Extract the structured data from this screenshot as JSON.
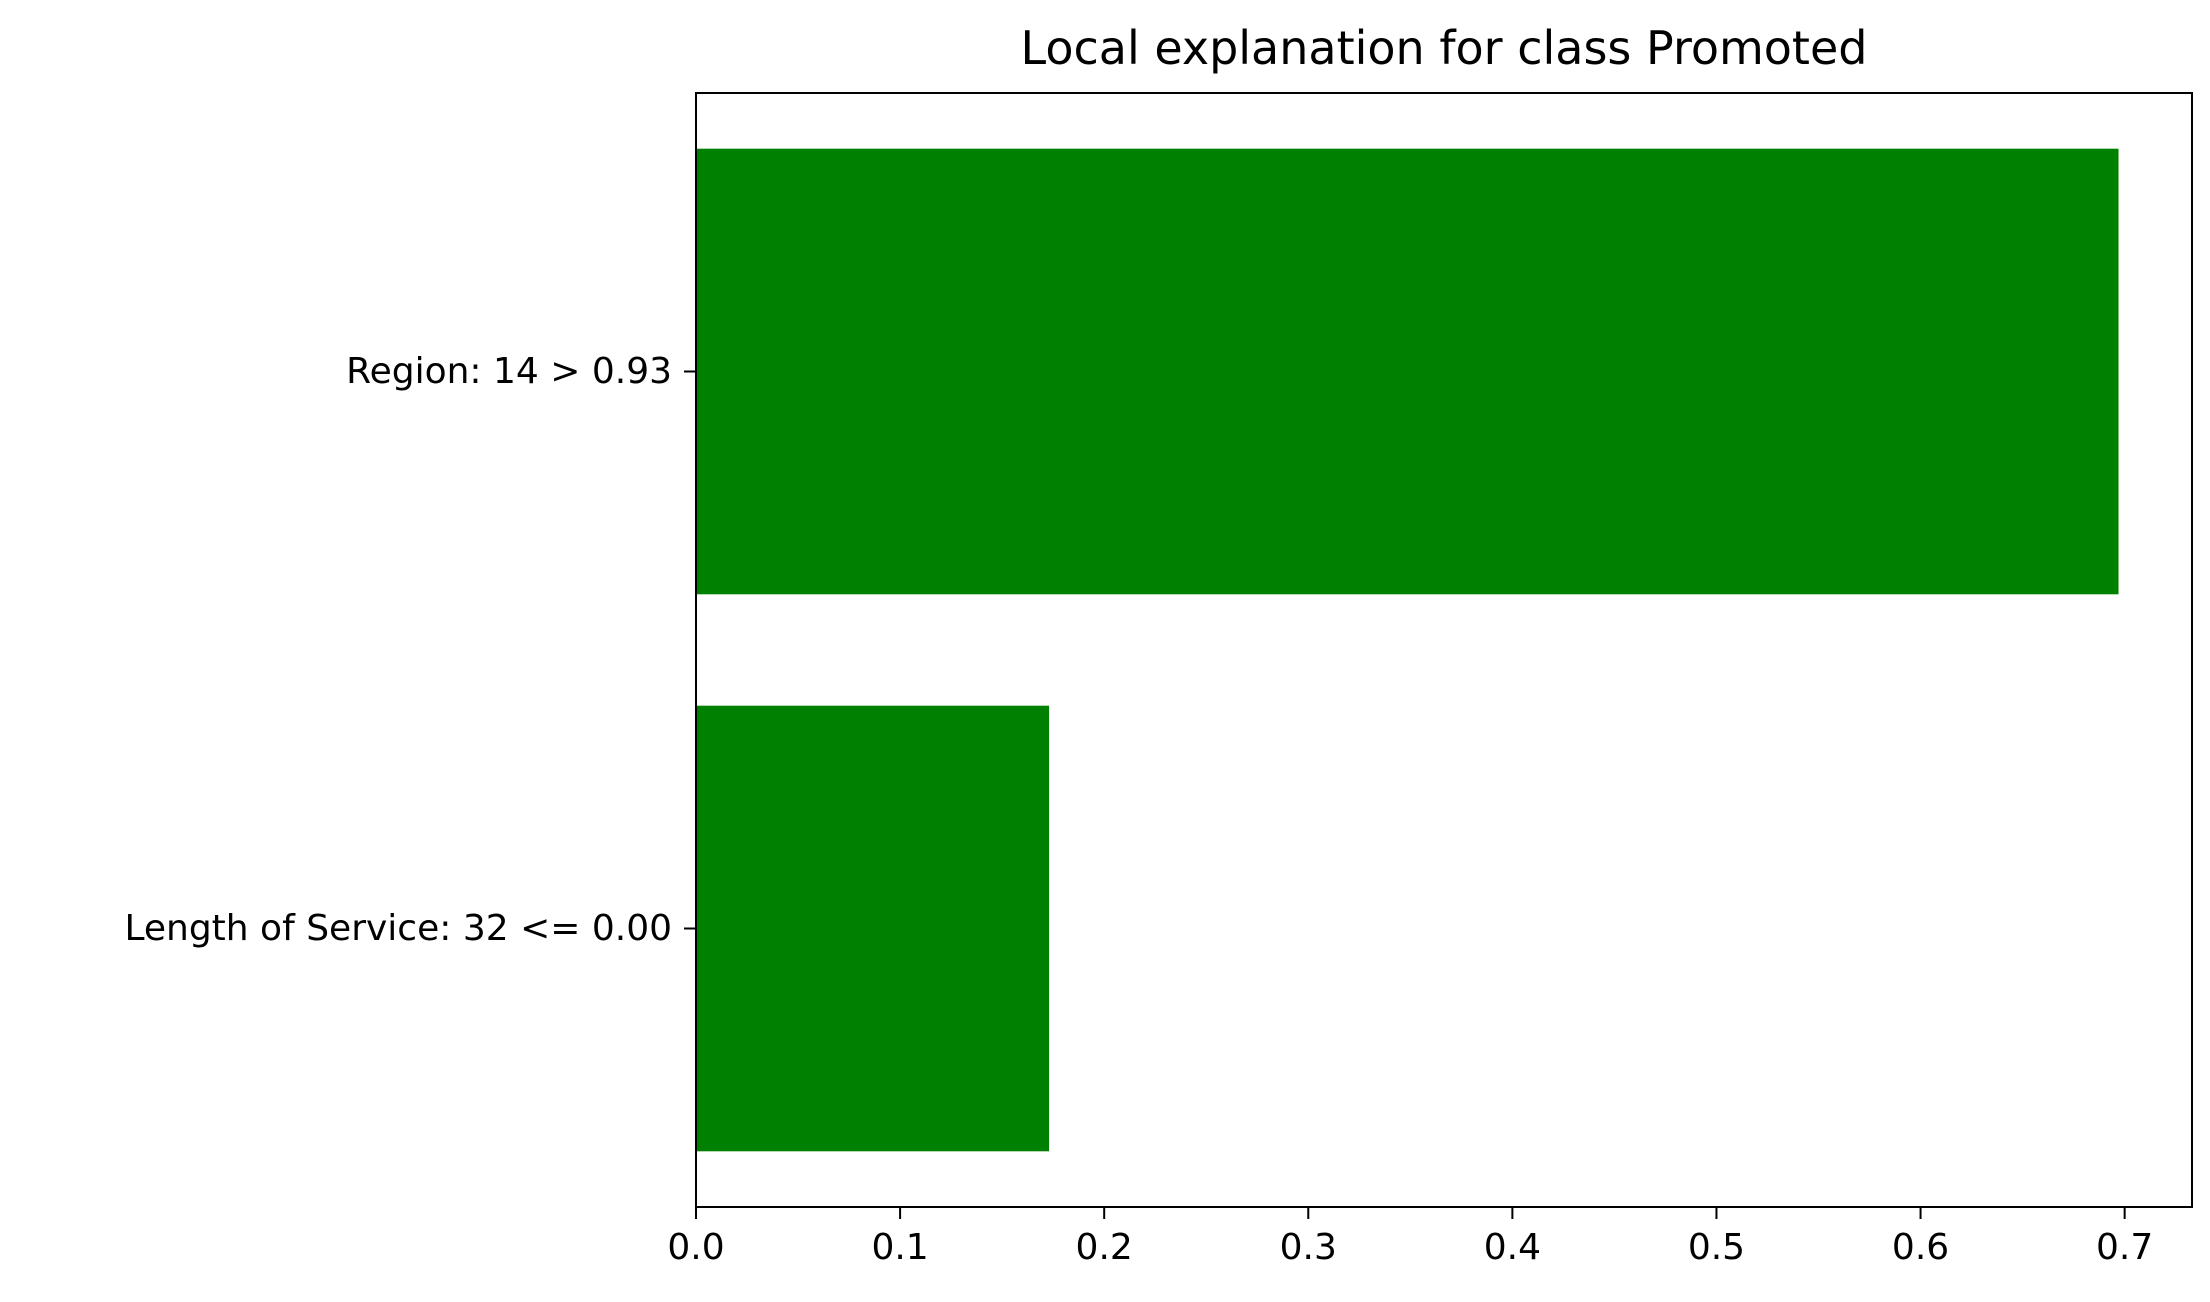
{
  "chart_data": {
    "type": "bar",
    "orientation": "horizontal",
    "title": "Local explanation for class Promoted",
    "xlabel": "",
    "ylabel": "",
    "categories": [
      "Length of Service: 32 <= 0.00",
      "Region: 14 > 0.93"
    ],
    "values": [
      0.173,
      0.697
    ],
    "xlim": [
      0,
      0.733
    ],
    "xticks": [
      0.0,
      0.1,
      0.2,
      0.3,
      0.4,
      0.5,
      0.6,
      0.7
    ],
    "xtick_labels": [
      "0.0",
      "0.1",
      "0.2",
      "0.3",
      "0.4",
      "0.5",
      "0.6",
      "0.7"
    ],
    "bar_color": "#008000",
    "grid": false,
    "legend": "none"
  }
}
